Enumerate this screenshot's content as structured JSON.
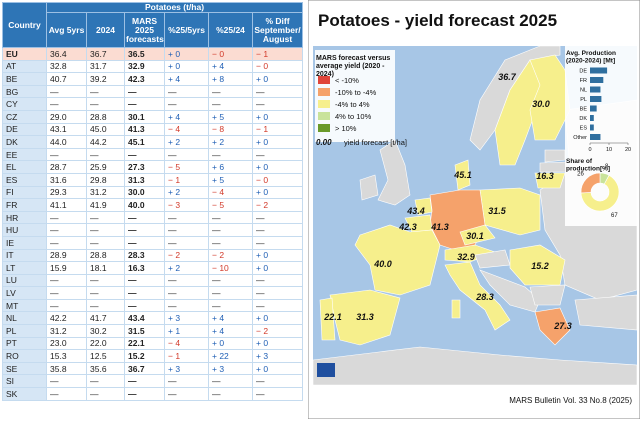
{
  "table": {
    "title": "Potatoes (t/ha)",
    "columns": [
      "Country",
      "Avg 5yrs",
      "2024",
      "MARS 2025 forecasts",
      "%25/5yrs",
      "%25/24",
      "% Diff September/ August"
    ],
    "rows": [
      [
        "EU",
        "36.4",
        "36.7",
        "36.5",
        "+ 0",
        "− 0",
        "− 1"
      ],
      [
        "AT",
        "32.8",
        "31.7",
        "32.9",
        "+ 0",
        "+ 4",
        "− 0"
      ],
      [
        "BE",
        "40.7",
        "39.2",
        "42.3",
        "+ 4",
        "+ 8",
        "+ 0"
      ],
      [
        "BG",
        "—",
        "—",
        "—",
        "—",
        "—",
        "—"
      ],
      [
        "CY",
        "—",
        "—",
        "—",
        "—",
        "—",
        "—"
      ],
      [
        "CZ",
        "29.0",
        "28.8",
        "30.1",
        "+ 4",
        "+ 5",
        "+ 0"
      ],
      [
        "DE",
        "43.1",
        "45.0",
        "41.3",
        "− 4",
        "− 8",
        "− 1"
      ],
      [
        "DK",
        "44.0",
        "44.2",
        "45.1",
        "+ 2",
        "+ 2",
        "+ 0"
      ],
      [
        "EE",
        "—",
        "—",
        "—",
        "—",
        "—",
        "—"
      ],
      [
        "EL",
        "28.7",
        "25.9",
        "27.3",
        "− 5",
        "+ 6",
        "+ 0"
      ],
      [
        "ES",
        "31.6",
        "29.8",
        "31.3",
        "− 1",
        "+ 5",
        "− 0"
      ],
      [
        "FI",
        "29.3",
        "31.2",
        "30.0",
        "+ 2",
        "− 4",
        "+ 0"
      ],
      [
        "FR",
        "41.1",
        "41.9",
        "40.0",
        "− 3",
        "− 5",
        "− 2"
      ],
      [
        "HR",
        "—",
        "—",
        "—",
        "—",
        "—",
        "—"
      ],
      [
        "HU",
        "—",
        "—",
        "—",
        "—",
        "—",
        "—"
      ],
      [
        "IE",
        "—",
        "—",
        "—",
        "—",
        "—",
        "—"
      ],
      [
        "IT",
        "28.9",
        "28.8",
        "28.3",
        "− 2",
        "− 2",
        "+ 0"
      ],
      [
        "LT",
        "15.9",
        "18.1",
        "16.3",
        "+ 2",
        "− 10",
        "+ 0"
      ],
      [
        "LU",
        "—",
        "—",
        "—",
        "—",
        "—",
        "—"
      ],
      [
        "LV",
        "—",
        "—",
        "—",
        "—",
        "—",
        "—"
      ],
      [
        "MT",
        "—",
        "—",
        "—",
        "—",
        "—",
        "—"
      ],
      [
        "NL",
        "42.2",
        "41.7",
        "43.4",
        "+ 3",
        "+ 4",
        "+ 0"
      ],
      [
        "PL",
        "31.2",
        "30.2",
        "31.5",
        "+ 1",
        "+ 4",
        "− 2"
      ],
      [
        "PT",
        "23.0",
        "22.0",
        "22.1",
        "− 4",
        "+ 0",
        "+ 0"
      ],
      [
        "RO",
        "15.3",
        "12.5",
        "15.2",
        "− 1",
        "+ 22",
        "+ 3"
      ],
      [
        "SE",
        "35.8",
        "35.6",
        "36.7",
        "+ 3",
        "+ 3",
        "+ 0"
      ],
      [
        "SI",
        "—",
        "—",
        "—",
        "—",
        "—",
        "—"
      ],
      [
        "SK",
        "—",
        "—",
        "—",
        "—",
        "—",
        "—"
      ]
    ]
  },
  "map": {
    "title": "Potatoes - yield forecast 2025",
    "legend": {
      "title": "MARS forecast versus average yield (2020 - 2024)",
      "items": [
        {
          "label": "< -10%",
          "color": "#e0453a"
        },
        {
          "label": "-10% to -4%",
          "color": "#f5a26b"
        },
        {
          "label": "-4% to 4%",
          "color": "#f6ef8c"
        },
        {
          "label": "4% to 10%",
          "color": "#c9e39a"
        },
        {
          "label": "> 10%",
          "color": "#6a9a2a"
        }
      ],
      "sample": "0.00",
      "sample_label": "yield forecast [t/ha]"
    },
    "labels": [
      "36.7",
      "30.0",
      "16.3",
      "45.1",
      "43.4",
      "42.3",
      "41.3",
      "30.1",
      "31.5",
      "40.0",
      "32.9",
      "15.2",
      "28.3",
      "22.1",
      "31.3",
      "27.3"
    ],
    "footer": "MARS Bulletin Vol. 33 No.8 (2025)"
  },
  "production_chart": {
    "type": "bar",
    "title": "Avg. Production (2020-2024) [Mt]",
    "categories": [
      "DE",
      "FR",
      "NL",
      "PL",
      "BE",
      "DK",
      "ES",
      "Other"
    ],
    "values": [
      9,
      7,
      5.5,
      6,
      3.5,
      2,
      2,
      5.5
    ],
    "color": "#2f6f9f",
    "xlim": [
      0,
      20
    ],
    "xticks": [
      0,
      10,
      20
    ]
  },
  "share_chart": {
    "type": "pie",
    "title": "Share of production[%]",
    "values": [
      8,
      67,
      26
    ],
    "colors": [
      "#c9e39a",
      "#f6ef8c",
      "#f5a26b"
    ]
  }
}
